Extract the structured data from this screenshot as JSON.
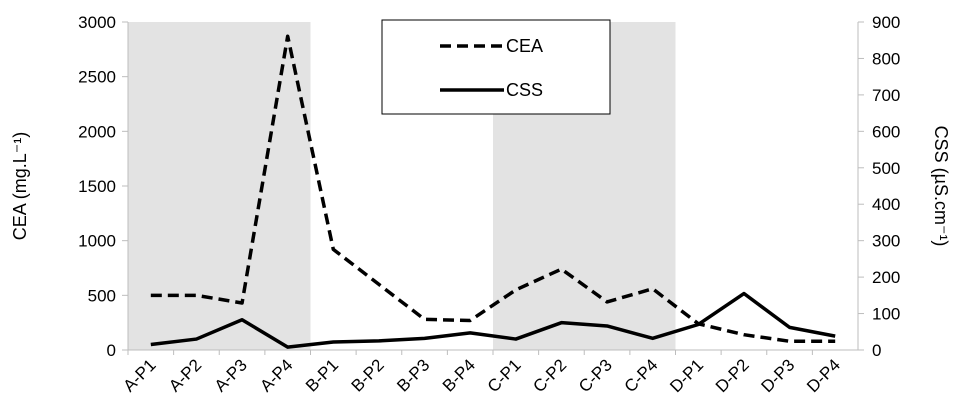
{
  "chart_data": {
    "type": "line",
    "categories": [
      "A-P1",
      "A-P2",
      "A-P3",
      "A-P4",
      "B-P1",
      "B-P2",
      "B-P3",
      "B-P4",
      "C-P1",
      "C-P2",
      "C-P3",
      "C-P4",
      "D-P1",
      "D-P2",
      "D-P3",
      "D-P4"
    ],
    "series": [
      {
        "name": "CEA",
        "axis": "left",
        "style": "dashed",
        "color": "#000000",
        "values": [
          500,
          500,
          430,
          2870,
          920,
          600,
          280,
          270,
          550,
          740,
          440,
          560,
          240,
          140,
          80,
          80
        ]
      },
      {
        "name": "CSS",
        "axis": "right",
        "style": "solid",
        "color": "#000000",
        "values": [
          15,
          30,
          83,
          8,
          22,
          25,
          32,
          47,
          30,
          75,
          66,
          32,
          70,
          155,
          62,
          38
        ]
      }
    ],
    "ylabel": "CEA (mg.L⁻¹)",
    "y2label": "CSS (µS.cm⁻¹)",
    "ylim": [
      0,
      3000
    ],
    "y2lim": [
      0,
      900
    ],
    "yticks": [
      0,
      500,
      1000,
      1500,
      2000,
      2500,
      3000
    ],
    "y2ticks": [
      0,
      100,
      200,
      300,
      400,
      500,
      600,
      700,
      800,
      900
    ],
    "shaded_groups": [
      "A",
      "C"
    ],
    "shade_color": "#e3e3e3",
    "legend_position": "top-center"
  }
}
